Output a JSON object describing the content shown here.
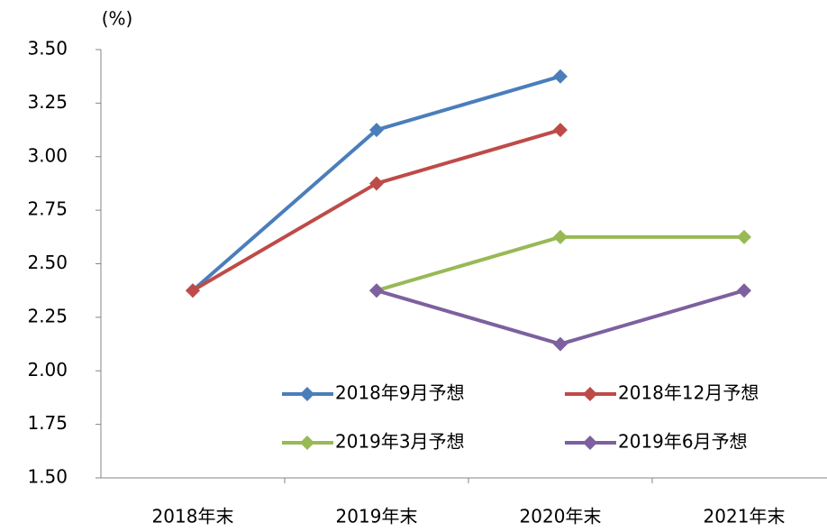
{
  "chart_data": {
    "type": "line",
    "y_label": "(%)",
    "categories": [
      "2018年末",
      "2019年末",
      "2020年末",
      "2021年末"
    ],
    "series": [
      {
        "name": "2018年9月予想",
        "color": "#4a7ebb",
        "values": [
          2.375,
          3.125,
          3.375,
          null
        ]
      },
      {
        "name": "2018年12月予想",
        "color": "#be4b48",
        "values": [
          2.375,
          2.875,
          3.125,
          null
        ]
      },
      {
        "name": "2019年3月予想",
        "color": "#98b954",
        "values": [
          null,
          2.375,
          2.625,
          2.625
        ]
      },
      {
        "name": "2019年6月予想",
        "color": "#7d60a0",
        "values": [
          null,
          2.375,
          2.125,
          2.375
        ]
      }
    ],
    "ylim": [
      1.5,
      3.5
    ],
    "yticks": [
      {
        "value": 1.5,
        "label": "1.50"
      },
      {
        "value": 1.75,
        "label": "1.75"
      },
      {
        "value": 2,
        "label": "2.00"
      },
      {
        "value": 2.25,
        "label": "2.25"
      },
      {
        "value": 2.5,
        "label": "2.50"
      },
      {
        "value": 2.75,
        "label": "2.75"
      },
      {
        "value": 3,
        "label": "3.00"
      },
      {
        "value": 3.25,
        "label": "3.25"
      },
      {
        "value": 3.5,
        "label": "3.50"
      }
    ]
  }
}
